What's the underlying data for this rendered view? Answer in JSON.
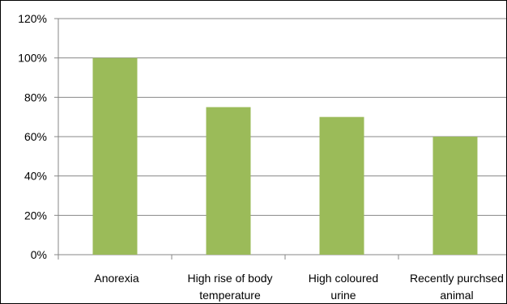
{
  "chart_data": {
    "type": "bar",
    "categories": [
      [
        "Anorexia"
      ],
      [
        "High rise of body",
        "temperature"
      ],
      [
        "High coloured",
        "urine"
      ],
      [
        "Recently purchsed",
        "animal"
      ]
    ],
    "values": [
      100,
      75,
      70,
      60
    ],
    "ylim": [
      0,
      120
    ],
    "yticks": [
      0,
      20,
      40,
      60,
      80,
      100,
      120
    ],
    "ytick_labels": [
      "0%",
      "20%",
      "40%",
      "60%",
      "80%",
      "100%",
      "120%"
    ],
    "grid": true,
    "legend": "none",
    "title": "",
    "xlabel": "",
    "ylabel": "",
    "colors": {
      "bar": "#9BBB59",
      "grid": "#878787",
      "axis": "#878787"
    }
  }
}
